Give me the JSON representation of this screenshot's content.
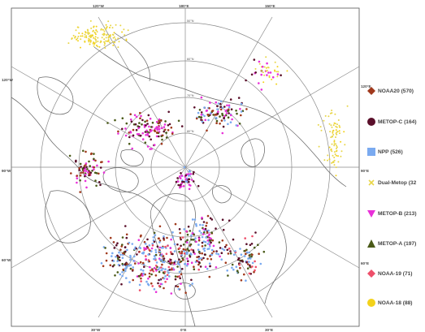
{
  "map": {
    "type": "polar stereographic observation map",
    "projection_center": "North Pole",
    "longitude_labels": [
      "120°W",
      "150°W",
      "180°E",
      "150°E",
      "120°E",
      "90°E",
      "60°E",
      "30°E",
      "0°E",
      "30°W",
      "60°W",
      "90°W"
    ],
    "latitude_labels": [
      "80°N",
      "70°N",
      "60°N",
      "50°N"
    ],
    "colors": {
      "coastline": "#6a6a6a",
      "grid": "#8a8a8a",
      "background": "#ffffff"
    }
  },
  "legend": {
    "items": [
      {
        "label": "NOAA20 (570)",
        "marker": "diamond",
        "color": "#a0391c",
        "count": 570
      },
      {
        "label": "METOP-C (164)",
        "marker": "circle",
        "color": "#5a0f2a",
        "count": 164
      },
      {
        "label": "NPP (526)",
        "marker": "square",
        "color": "#7aaaf0",
        "count": 526
      },
      {
        "label": "Dual-Metop (32",
        "marker": "cross",
        "color": "#e8d648",
        "count": 32
      },
      {
        "label": "METOP-B (213)",
        "marker": "triangle-down",
        "color": "#e830d8",
        "count": 213
      },
      {
        "label": "METOP-A (197)",
        "marker": "triangle-up",
        "color": "#4a5a18",
        "count": 197
      },
      {
        "label": "NOAA-19 (71)",
        "marker": "diamond",
        "color": "#ee4f6a",
        "count": 71
      },
      {
        "label": "NOAA-18 (88)",
        "marker": "circle",
        "color": "#f3d21b",
        "count": 88
      }
    ]
  }
}
